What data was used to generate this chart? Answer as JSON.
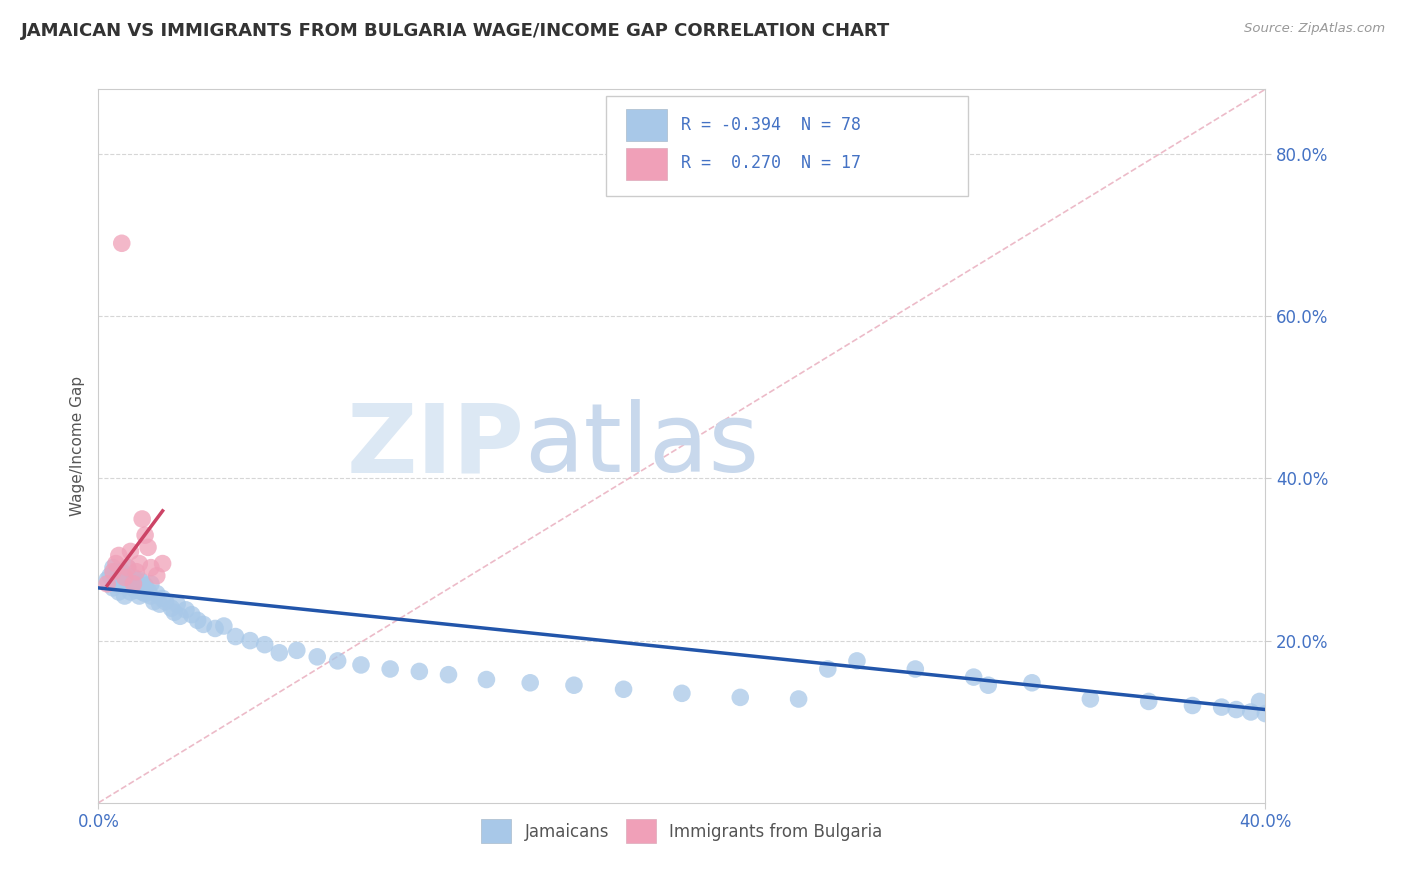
{
  "title": "JAMAICAN VS IMMIGRANTS FROM BULGARIA WAGE/INCOME GAP CORRELATION CHART",
  "source": "Source: ZipAtlas.com",
  "ylabel": "Wage/Income Gap",
  "xlim": [
    0.0,
    0.4
  ],
  "ylim": [
    0.0,
    0.88
  ],
  "xtick_positions": [
    0.0,
    0.4
  ],
  "xtick_labels": [
    "0.0%",
    "40.0%"
  ],
  "ytick_positions": [
    0.2,
    0.4,
    0.6,
    0.8
  ],
  "ytick_labels": [
    "20.0%",
    "40.0%",
    "60.0%",
    "80.0%"
  ],
  "blue_color": "#a8c8e8",
  "pink_color": "#f0a0b8",
  "blue_line_color": "#2255aa",
  "pink_line_color": "#cc4466",
  "ref_line_color": "#e8aabb",
  "watermark_zip_color": "#dce8f4",
  "watermark_atlas_color": "#c8d8ec",
  "legend_label_jamaicans": "Jamaicans",
  "legend_label_bulgaria": "Immigrants from Bulgaria",
  "blue_scatter_x": [
    0.003,
    0.004,
    0.005,
    0.005,
    0.006,
    0.006,
    0.007,
    0.007,
    0.008,
    0.008,
    0.008,
    0.009,
    0.009,
    0.01,
    0.01,
    0.01,
    0.011,
    0.011,
    0.012,
    0.012,
    0.013,
    0.013,
    0.014,
    0.014,
    0.015,
    0.015,
    0.016,
    0.016,
    0.017,
    0.018,
    0.018,
    0.019,
    0.02,
    0.021,
    0.022,
    0.023,
    0.025,
    0.026,
    0.027,
    0.028,
    0.03,
    0.032,
    0.034,
    0.036,
    0.04,
    0.043,
    0.047,
    0.052,
    0.057,
    0.062,
    0.068,
    0.075,
    0.082,
    0.09,
    0.1,
    0.11,
    0.12,
    0.133,
    0.148,
    0.163,
    0.18,
    0.2,
    0.22,
    0.24,
    0.26,
    0.28,
    0.3,
    0.32,
    0.34,
    0.36,
    0.375,
    0.385,
    0.39,
    0.395,
    0.398,
    0.4,
    0.305,
    0.25
  ],
  "blue_scatter_y": [
    0.275,
    0.28,
    0.265,
    0.29,
    0.27,
    0.285,
    0.26,
    0.275,
    0.268,
    0.278,
    0.285,
    0.255,
    0.272,
    0.268,
    0.28,
    0.29,
    0.26,
    0.272,
    0.265,
    0.278,
    0.262,
    0.27,
    0.255,
    0.275,
    0.26,
    0.272,
    0.258,
    0.268,
    0.262,
    0.255,
    0.27,
    0.248,
    0.258,
    0.245,
    0.252,
    0.248,
    0.24,
    0.235,
    0.245,
    0.23,
    0.238,
    0.232,
    0.225,
    0.22,
    0.215,
    0.218,
    0.205,
    0.2,
    0.195,
    0.185,
    0.188,
    0.18,
    0.175,
    0.17,
    0.165,
    0.162,
    0.158,
    0.152,
    0.148,
    0.145,
    0.14,
    0.135,
    0.13,
    0.128,
    0.175,
    0.165,
    0.155,
    0.148,
    0.128,
    0.125,
    0.12,
    0.118,
    0.115,
    0.112,
    0.125,
    0.11,
    0.145,
    0.165
  ],
  "pink_scatter_x": [
    0.003,
    0.005,
    0.006,
    0.007,
    0.008,
    0.009,
    0.01,
    0.011,
    0.012,
    0.013,
    0.014,
    0.015,
    0.016,
    0.017,
    0.018,
    0.02,
    0.022
  ],
  "pink_scatter_y": [
    0.27,
    0.285,
    0.295,
    0.305,
    0.69,
    0.278,
    0.29,
    0.31,
    0.27,
    0.285,
    0.295,
    0.35,
    0.33,
    0.315,
    0.29,
    0.28,
    0.295
  ],
  "blue_line_x0": 0.0,
  "blue_line_x1": 0.4,
  "blue_line_y0": 0.265,
  "blue_line_y1": 0.115,
  "pink_line_x0": 0.003,
  "pink_line_x1": 0.022,
  "pink_line_y0": 0.268,
  "pink_line_y1": 0.36,
  "ref_line_x0": 0.0,
  "ref_line_x1": 0.4,
  "ref_line_y0": 0.0,
  "ref_line_y1": 0.88
}
